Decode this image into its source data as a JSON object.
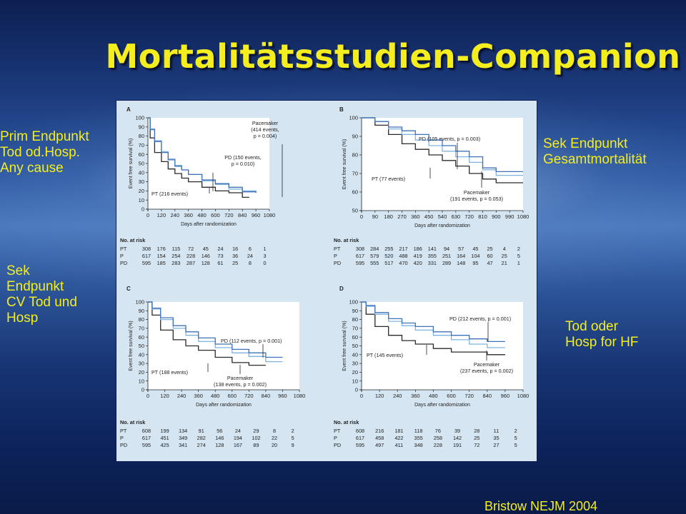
{
  "slide": {
    "title": "Mortalitätsstudien-Companion",
    "citation": "Bristow NEJM 2004",
    "labels": {
      "prim": [
        "Prim Endpunkt",
        "Tod od.Hosp.",
        "Any cause"
      ],
      "sek_mort": [
        "Sek Endpunkt",
        "Gesamtmortalität"
      ],
      "sek_cv": [
        "Sek",
        "Endpunkt",
        "CV Tod und",
        "Hosp"
      ],
      "hf": [
        "Tod oder",
        "Hosp for HF"
      ]
    },
    "colors": {
      "title": "#f4ee1e",
      "figure_bg": "#d5e5f1",
      "pt_line": "#2a2a2a",
      "p_line": "#7fb3df",
      "pd_line": "#3f72b8"
    }
  },
  "chart_data": [
    {
      "type": "line",
      "panel": "A",
      "xlabel": "Days after randomization",
      "ylabel": "Event free survival (%)",
      "xlim": [
        0,
        1080
      ],
      "ylim": [
        0,
        100
      ],
      "xticks": [
        0,
        120,
        240,
        360,
        480,
        600,
        720,
        840,
        960,
        1080
      ],
      "yticks": [
        0,
        10,
        20,
        30,
        40,
        50,
        60,
        70,
        80,
        90,
        100
      ],
      "series": [
        {
          "name": "PT",
          "color": "#2a2a2a",
          "x": [
            0,
            20,
            60,
            120,
            180,
            240,
            300,
            360,
            480,
            600,
            720,
            840,
            900
          ],
          "y": [
            100,
            78,
            62,
            52,
            44,
            39,
            34,
            30,
            24,
            20,
            18,
            13,
            13
          ]
        },
        {
          "name": "P",
          "color": "#7fb3df",
          "x": [
            0,
            20,
            60,
            120,
            180,
            240,
            300,
            360,
            480,
            600,
            720,
            840,
            960
          ],
          "y": [
            100,
            88,
            75,
            63,
            55,
            48,
            43,
            38,
            31,
            27,
            22,
            20,
            18
          ]
        },
        {
          "name": "PD",
          "color": "#3f72b8",
          "x": [
            0,
            20,
            60,
            120,
            180,
            240,
            300,
            360,
            480,
            600,
            720,
            840,
            960
          ],
          "y": [
            100,
            87,
            74,
            62,
            54,
            47,
            43,
            38,
            32,
            28,
            24,
            19,
            18
          ]
        }
      ],
      "annotations": [
        {
          "lines": [
            "Pacemaker",
            "(414 events,",
            "p = 0.004)"
          ]
        },
        {
          "lines": [
            "PD (150 events,",
            "p = 0.010)"
          ]
        },
        {
          "lines": [
            "PT (216 events)"
          ]
        }
      ],
      "risk_table": {
        "header": "No. at risk",
        "rows": [
          {
            "label": "PT",
            "values": [
              "308",
              "176",
              "115",
              "72",
              "45",
              "24",
              "16",
              "6",
              "1"
            ]
          },
          {
            "label": "P",
            "values": [
              "617",
              "154",
              "254",
              "228",
              "146",
              "73",
              "36",
              "24",
              "3"
            ]
          },
          {
            "label": "PD",
            "values": [
              "595",
              "185",
              "283",
              "287",
              "128",
              "61",
              "25",
              "8",
              "0"
            ]
          }
        ]
      }
    },
    {
      "type": "line",
      "panel": "B",
      "xlabel": "Days after randomization",
      "ylabel": "Event free survival (%)",
      "xlim": [
        0,
        1080
      ],
      "ylim": [
        50,
        100
      ],
      "xticks": [
        0,
        90,
        180,
        270,
        360,
        450,
        540,
        630,
        720,
        810,
        900,
        990,
        1080
      ],
      "xtick_labels": [
        "0",
        "90",
        "180",
        "270",
        "360",
        "450",
        "540",
        "630",
        "720",
        "810",
        "900",
        "990",
        "1080"
      ],
      "yticks": [
        50,
        60,
        70,
        80,
        90,
        100
      ],
      "series": [
        {
          "name": "PT",
          "color": "#2a2a2a",
          "x": [
            0,
            90,
            180,
            270,
            360,
            450,
            540,
            630,
            720,
            810,
            900,
            990,
            1080
          ],
          "y": [
            100,
            96,
            91,
            86,
            83,
            80,
            77,
            74,
            70,
            67,
            65,
            65,
            65
          ]
        },
        {
          "name": "P",
          "color": "#7fb3df",
          "x": [
            0,
            90,
            180,
            270,
            360,
            450,
            540,
            630,
            720,
            810,
            900,
            990,
            1080
          ],
          "y": [
            100,
            98,
            94,
            91,
            88,
            85,
            82,
            79,
            76,
            72,
            69,
            69,
            69
          ]
        },
        {
          "name": "PD",
          "color": "#3f72b8",
          "x": [
            0,
            90,
            180,
            270,
            360,
            450,
            540,
            630,
            720,
            810,
            900,
            990,
            1080
          ],
          "y": [
            100,
            98,
            95,
            93,
            91,
            88,
            85,
            82,
            79,
            73,
            71,
            71,
            71
          ]
        }
      ],
      "annotations": [
        {
          "lines": [
            "PD (105 events, p = 0.003)"
          ]
        },
        {
          "lines": [
            "PT (77 events)"
          ]
        },
        {
          "lines": [
            "Pacemaker",
            "(191 events, p = 0.053)"
          ]
        }
      ],
      "risk_table": {
        "header": "No. at risk",
        "rows": [
          {
            "label": "PT",
            "values": [
              "308",
              "284",
              "255",
              "217",
              "186",
              "141",
              "94",
              "57",
              "45",
              "25",
              "4",
              "2"
            ]
          },
          {
            "label": "P",
            "values": [
              "617",
              "579",
              "520",
              "488",
              "419",
              "355",
              "251",
              "164",
              "104",
              "60",
              "25",
              "5"
            ]
          },
          {
            "label": "PD",
            "values": [
              "595",
              "555",
              "517",
              "470",
              "420",
              "331",
              "289",
              "148",
              "95",
              "47",
              "21",
              "1"
            ]
          }
        ]
      }
    },
    {
      "type": "line",
      "panel": "C",
      "xlabel": "Days after randomization",
      "ylabel": "Event free survival (%)",
      "xlim": [
        0,
        1080
      ],
      "ylim": [
        0,
        100
      ],
      "xticks": [
        0,
        120,
        240,
        360,
        480,
        600,
        720,
        840,
        960,
        1080
      ],
      "yticks": [
        0,
        10,
        20,
        30,
        40,
        50,
        60,
        70,
        80,
        90,
        100
      ],
      "series": [
        {
          "name": "PT",
          "color": "#2a2a2a",
          "x": [
            0,
            30,
            90,
            180,
            270,
            360,
            480,
            600,
            720,
            840
          ],
          "y": [
            100,
            85,
            68,
            57,
            50,
            45,
            37,
            31,
            28,
            28
          ]
        },
        {
          "name": "P",
          "color": "#7fb3df",
          "x": [
            0,
            30,
            90,
            180,
            270,
            360,
            480,
            600,
            720,
            840,
            960
          ],
          "y": [
            100,
            92,
            80,
            70,
            62,
            55,
            48,
            42,
            38,
            32,
            32
          ]
        },
        {
          "name": "PD",
          "color": "#3f72b8",
          "x": [
            0,
            30,
            90,
            180,
            270,
            360,
            480,
            600,
            720,
            840,
            960
          ],
          "y": [
            100,
            93,
            82,
            73,
            66,
            59,
            52,
            46,
            42,
            37,
            37
          ]
        }
      ],
      "annotations": [
        {
          "lines": [
            "PD (112 events, p = 0.001)"
          ]
        },
        {
          "lines": [
            "PT (188 events)"
          ]
        },
        {
          "lines": [
            "Pacemaker",
            "(138 events, p = 0.002)"
          ]
        }
      ],
      "risk_table": {
        "header": "No. at risk",
        "rows": [
          {
            "label": "PT",
            "values": [
              "608",
              "199",
              "134",
              "91",
              "56",
              "24",
              "29",
              "8",
              "2"
            ]
          },
          {
            "label": "P",
            "values": [
              "617",
              "451",
              "349",
              "282",
              "146",
              "194",
              "102",
              "22",
              "5"
            ]
          },
          {
            "label": "PD",
            "values": [
              "595",
              "425",
              "341",
              "274",
              "128",
              "167",
              "89",
              "20",
              "9"
            ]
          }
        ]
      }
    },
    {
      "type": "line",
      "panel": "D",
      "xlabel": "Days after randomization",
      "ylabel": "Event free survival (%)",
      "xlim": [
        0,
        1080
      ],
      "ylim": [
        0,
        100
      ],
      "xticks": [
        0,
        120,
        240,
        360,
        480,
        600,
        720,
        840,
        960,
        1080
      ],
      "yticks": [
        0,
        10,
        20,
        30,
        40,
        50,
        60,
        70,
        80,
        90,
        100
      ],
      "series": [
        {
          "name": "PT",
          "color": "#2a2a2a",
          "x": [
            0,
            30,
            90,
            180,
            270,
            360,
            480,
            600,
            720,
            840,
            960
          ],
          "y": [
            100,
            86,
            72,
            62,
            56,
            52,
            47,
            43,
            43,
            40,
            40
          ]
        },
        {
          "name": "P",
          "color": "#7fb3df",
          "x": [
            0,
            30,
            90,
            180,
            270,
            360,
            480,
            600,
            720,
            840,
            960
          ],
          "y": [
            100,
            95,
            86,
            78,
            73,
            68,
            62,
            57,
            52,
            48,
            48
          ]
        },
        {
          "name": "PD",
          "color": "#3f72b8",
          "x": [
            0,
            30,
            90,
            180,
            270,
            360,
            480,
            600,
            720,
            840,
            960
          ],
          "y": [
            100,
            96,
            88,
            81,
            76,
            72,
            66,
            62,
            58,
            55,
            55
          ]
        }
      ],
      "annotations": [
        {
          "lines": [
            "PD (212 events, p = 0.001)"
          ]
        },
        {
          "lines": [
            "PT (145 events)"
          ]
        },
        {
          "lines": [
            "Pacemaker",
            "(237 events, p = 0.002)"
          ]
        }
      ],
      "risk_table": {
        "header": "No. at risk",
        "rows": [
          {
            "label": "PT",
            "values": [
              "608",
              "216",
              "181",
              "118",
              "76",
              "39",
              "28",
              "11",
              "2"
            ]
          },
          {
            "label": "P",
            "values": [
              "617",
              "458",
              "422",
              "355",
              "258",
              "142",
              "25",
              "35",
              "5"
            ]
          },
          {
            "label": "PD",
            "values": [
              "595",
              "497",
              "411",
              "348",
              "228",
              "191",
              "72",
              "27",
              "5"
            ]
          }
        ]
      }
    }
  ]
}
